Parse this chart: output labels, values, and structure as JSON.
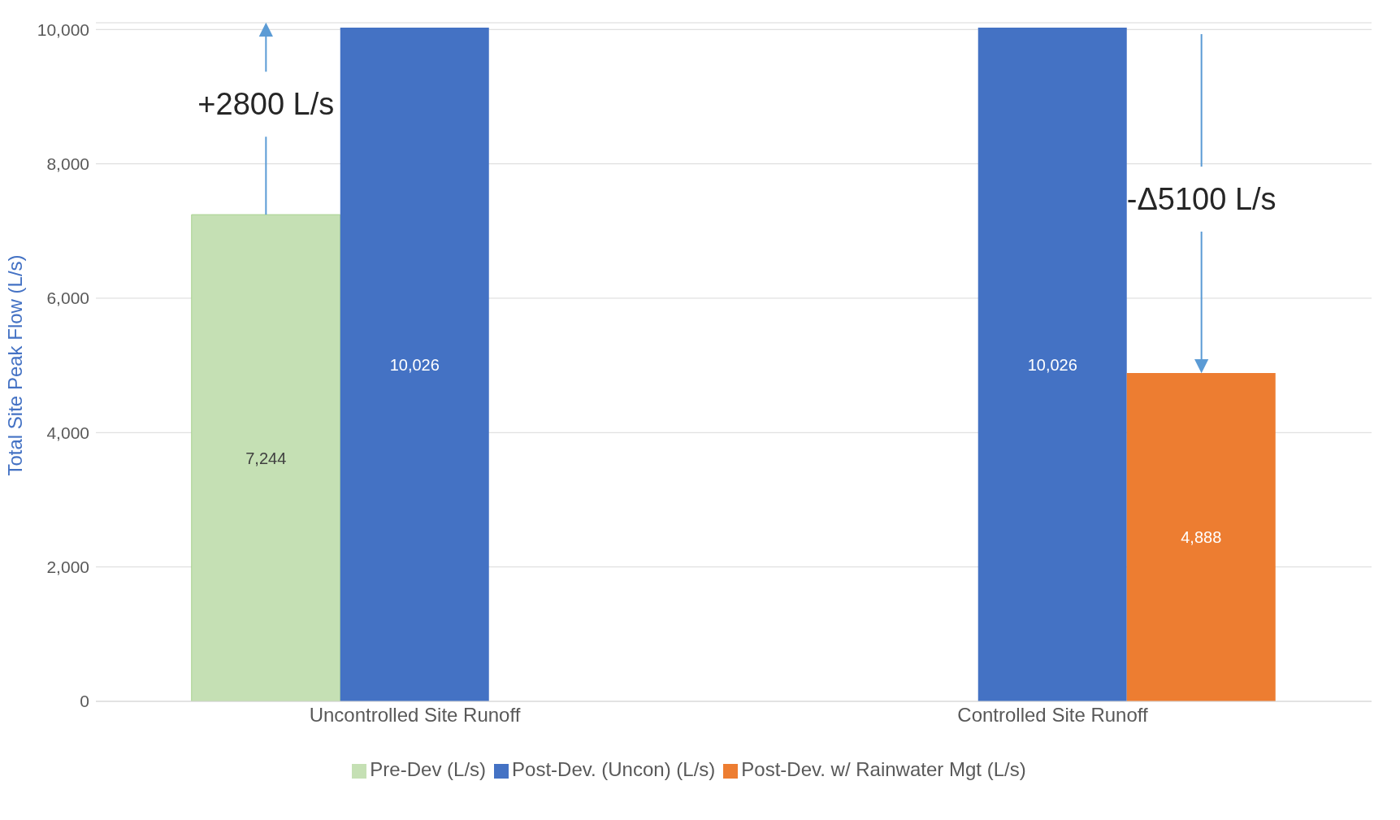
{
  "chart_data": {
    "type": "bar",
    "ylabel": "Total Site Peak Flow (L/s)",
    "categories": [
      "Uncontrolled Site Runoff",
      "Controlled Site Runoff"
    ],
    "series": [
      {
        "name": "Pre-Dev (L/s)",
        "color": "#c5e0b4",
        "values": [
          7244,
          null
        ],
        "value_labels": [
          "7,244",
          null
        ]
      },
      {
        "name": "Post-Dev. (Uncon) (L/s)",
        "color": "#4472c4",
        "values": [
          10026,
          10026
        ],
        "value_labels": [
          "10,026",
          "10,026"
        ]
      },
      {
        "name": "Post-Dev. w/ Rainwater Mgt (L/s)",
        "color": "#ed7d31",
        "values": [
          null,
          4888
        ],
        "value_labels": [
          null,
          "4,888"
        ]
      }
    ],
    "ylim": [
      0,
      10100
    ],
    "yticks": [
      0,
      {
        "value": 2000,
        "label": "2,000"
      },
      {
        "value": 4000,
        "label": "4,000"
      },
      {
        "value": 6000,
        "label": "6,000"
      },
      {
        "value": 8000,
        "label": "8,000"
      },
      {
        "value": 10000,
        "label": "10,000"
      }
    ],
    "grid": "y",
    "legend": "bottom",
    "annotations": [
      {
        "text": "+2800 L/s",
        "y": 7244
      },
      "-Δ5100 L/s"
    ]
  }
}
